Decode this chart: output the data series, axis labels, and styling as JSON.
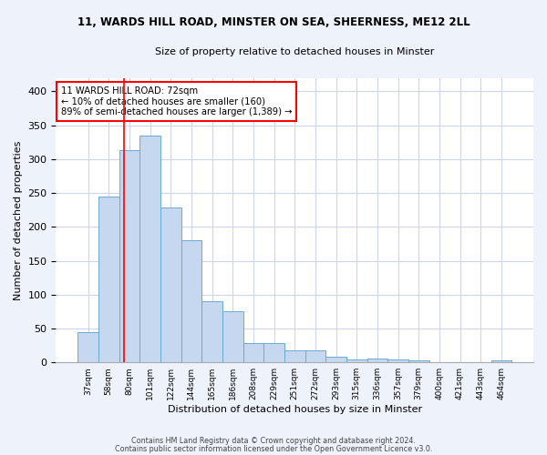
{
  "title_line1": "11, WARDS HILL ROAD, MINSTER ON SEA, SHEERNESS, ME12 2LL",
  "title_line2": "Size of property relative to detached houses in Minster",
  "xlabel": "Distribution of detached houses by size in Minster",
  "ylabel": "Number of detached properties",
  "categories": [
    "37sqm",
    "58sqm",
    "80sqm",
    "101sqm",
    "122sqm",
    "144sqm",
    "165sqm",
    "186sqm",
    "208sqm",
    "229sqm",
    "251sqm",
    "272sqm",
    "293sqm",
    "315sqm",
    "336sqm",
    "357sqm",
    "379sqm",
    "400sqm",
    "421sqm",
    "443sqm",
    "464sqm"
  ],
  "values": [
    45,
    245,
    313,
    335,
    228,
    180,
    90,
    75,
    28,
    28,
    18,
    18,
    9,
    4,
    5,
    4,
    3,
    0,
    0,
    0,
    3
  ],
  "bar_color": "#c5d8f0",
  "bar_edge_color": "#6aaad4",
  "red_line_x": 1.72,
  "annotation_text": "11 WARDS HILL ROAD: 72sqm\n← 10% of detached houses are smaller (160)\n89% of semi-detached houses are larger (1,389) →",
  "box_color": "white",
  "box_edge_color": "red",
  "ylim": [
    0,
    420
  ],
  "yticks": [
    0,
    50,
    100,
    150,
    200,
    250,
    300,
    350,
    400
  ],
  "footer_line1": "Contains HM Land Registry data © Crown copyright and database right 2024.",
  "footer_line2": "Contains public sector information licensed under the Open Government Licence v3.0.",
  "background_color": "#eef2fb",
  "plot_bg_color": "#ffffff",
  "grid_color": "#cdd5ee"
}
